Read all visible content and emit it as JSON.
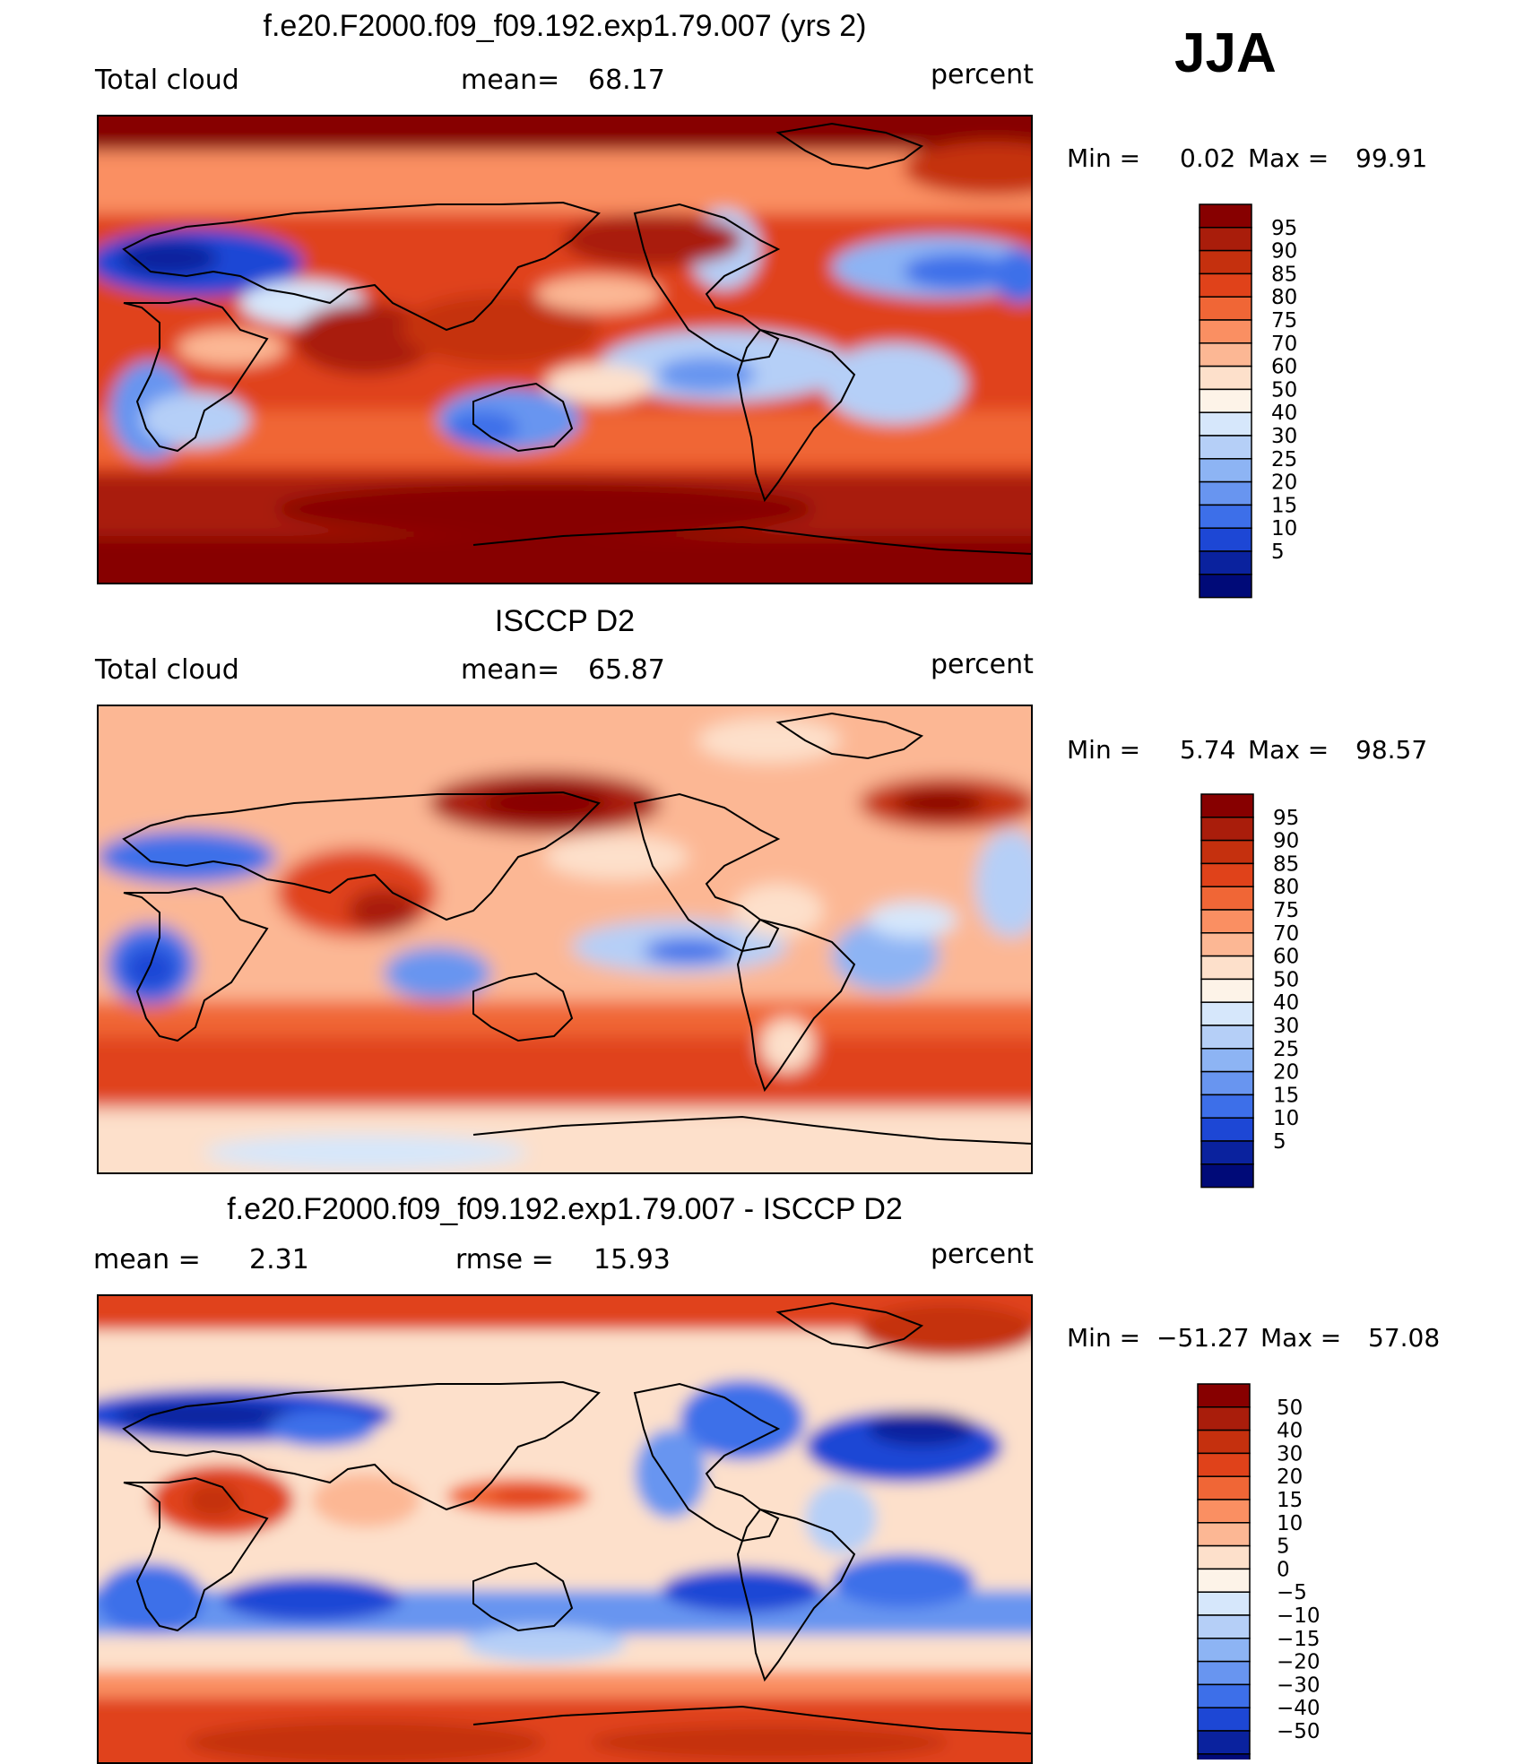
{
  "season": "JJA",
  "chart_data": [
    {
      "type": "heatmap",
      "title": "f.e20.F2000.f09_f09.192.exp1.79.007 (yrs 2)",
      "variable": "Total cloud",
      "stat_label": "mean=",
      "stat_value": "68.17",
      "units": "percent",
      "min_label": "Min  =",
      "min_value": "0.02",
      "max_label": "Max  =",
      "max_value": "99.91",
      "colorbar_levels": [
        "95",
        "90",
        "85",
        "80",
        "75",
        "70",
        "60",
        "50",
        "40",
        "30",
        "25",
        "20",
        "15",
        "10",
        "5"
      ],
      "colorbar_colors": [
        "#870000",
        "#a91d0b",
        "#c5300e",
        "#e0421a",
        "#f06636",
        "#fa8f62",
        "#fcb794",
        "#fde0cb",
        "#fdf3e8",
        "#d6e7fb",
        "#b5cff7",
        "#8db4f4",
        "#6895f0",
        "#3d6fe9",
        "#1d47d5",
        "#0a229e",
        "#000a78"
      ]
    },
    {
      "type": "heatmap",
      "title": "ISCCP D2",
      "variable": "Total cloud",
      "stat_label": "mean=",
      "stat_value": "65.87",
      "units": "percent",
      "min_label": "Min  =",
      "min_value": "5.74",
      "max_label": "Max  =",
      "max_value": "98.57",
      "colorbar_levels": [
        "95",
        "90",
        "85",
        "80",
        "75",
        "70",
        "60",
        "50",
        "40",
        "30",
        "25",
        "20",
        "15",
        "10",
        "5"
      ],
      "colorbar_colors": [
        "#870000",
        "#a91d0b",
        "#c5300e",
        "#e0421a",
        "#f06636",
        "#fa8f62",
        "#fcb794",
        "#fde0cb",
        "#fdf3e8",
        "#d6e7fb",
        "#b5cff7",
        "#8db4f4",
        "#6895f0",
        "#3d6fe9",
        "#1d47d5",
        "#0a229e",
        "#000a78"
      ]
    },
    {
      "type": "heatmap",
      "title": "f.e20.F2000.f09_f09.192.exp1.79.007 - ISCCP D2",
      "stat_label": "mean  =",
      "stat_value": "2.31",
      "rmse_label": "rmse  =",
      "rmse_value": "15.93",
      "units": "percent",
      "min_label": "Min  =",
      "min_value": "−51.27",
      "max_label": "Max  =",
      "max_value": "57.08",
      "colorbar_levels": [
        "50",
        "40",
        "30",
        "20",
        "15",
        "10",
        "5",
        "0",
        "−5",
        "−10",
        "−15",
        "−20",
        "−30",
        "−40",
        "−50"
      ],
      "colorbar_colors": [
        "#870000",
        "#a91d0b",
        "#c5300e",
        "#e0421a",
        "#f06636",
        "#fa8f62",
        "#fcb794",
        "#fde0cb",
        "#fdf3e8",
        "#d6e7fb",
        "#b5cff7",
        "#8db4f4",
        "#6895f0",
        "#3d6fe9",
        "#1d47d5",
        "#0a229e",
        "#000a78"
      ]
    }
  ]
}
